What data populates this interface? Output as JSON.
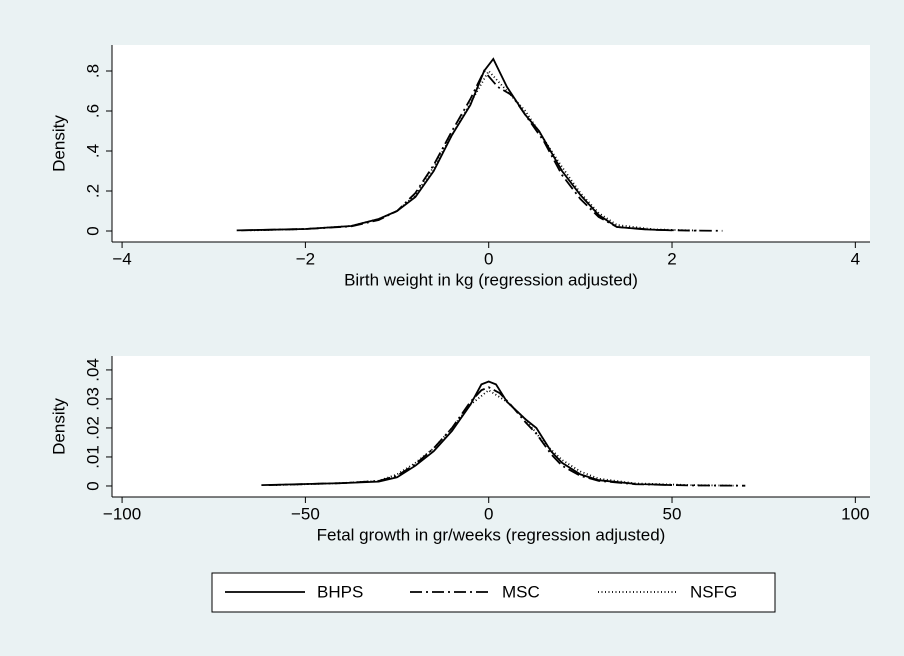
{
  "chart_data": [
    {
      "type": "line",
      "x_label": "Birth weight in kg (regression adjusted)",
      "y_label": "Density",
      "xlim": [
        -4.11,
        4.16
      ],
      "ylim": [
        -0.055,
        0.93
      ],
      "xticks": [
        {
          "value": -4,
          "label": "−4"
        },
        {
          "value": -2,
          "label": "−2"
        },
        0,
        2,
        4
      ],
      "yticks": [
        0,
        {
          "value": 0.2,
          "label": ".2"
        },
        {
          "value": 0.4,
          "label": ".4"
        },
        {
          "value": 0.6,
          "label": ".6"
        },
        {
          "value": 0.8,
          "label": ".8"
        }
      ],
      "series": [
        {
          "name": "BHPS",
          "color": "#000000",
          "style": "solid",
          "x": [
            -2.75,
            -2,
            -1.5,
            -1.2,
            -1,
            -0.8,
            -0.6,
            -0.4,
            -0.2,
            -0.05,
            0.05,
            0.2,
            0.4,
            0.55,
            0.8,
            1,
            1.2,
            1.4,
            1.7,
            2
          ],
          "values": [
            0.003,
            0.01,
            0.025,
            0.06,
            0.1,
            0.17,
            0.3,
            0.48,
            0.63,
            0.8,
            0.86,
            0.72,
            0.58,
            0.5,
            0.3,
            0.18,
            0.08,
            0.02,
            0.008,
            0.003
          ]
        },
        {
          "name": "MSC",
          "color": "#000000",
          "style": "dashdot",
          "x": [
            -2.7,
            -2,
            -1.5,
            -1.2,
            -1,
            -0.8,
            -0.6,
            -0.4,
            -0.2,
            -0.05,
            0.1,
            0.25,
            0.4,
            0.6,
            0.8,
            1,
            1.2,
            1.4,
            1.8,
            2.2,
            2.55
          ],
          "values": [
            0.003,
            0.01,
            0.023,
            0.055,
            0.1,
            0.19,
            0.33,
            0.5,
            0.66,
            0.8,
            0.72,
            0.68,
            0.58,
            0.45,
            0.28,
            0.16,
            0.07,
            0.02,
            0.006,
            0.002,
            0.001
          ]
        },
        {
          "name": "NSFG",
          "color": "#000000",
          "style": "dot",
          "x": [
            -2.6,
            -2,
            -1.5,
            -1.2,
            -1,
            -0.8,
            -0.6,
            -0.4,
            -0.2,
            0,
            0.2,
            0.4,
            0.6,
            0.8,
            1,
            1.2,
            1.4,
            1.8,
            2.3
          ],
          "values": [
            0.003,
            0.01,
            0.025,
            0.06,
            0.1,
            0.18,
            0.32,
            0.48,
            0.64,
            0.8,
            0.7,
            0.6,
            0.46,
            0.32,
            0.19,
            0.09,
            0.03,
            0.008,
            0.002
          ]
        }
      ]
    },
    {
      "type": "line",
      "x_label": "Fetal growth in gr/weeks (regression adjusted)",
      "y_label": "Density",
      "xlim": [
        -102.75,
        104
      ],
      "ylim": [
        -0.0038,
        0.0448
      ],
      "xticks": [
        {
          "value": -100,
          "label": "−100"
        },
        {
          "value": -50,
          "label": "−50"
        },
        0,
        50,
        100
      ],
      "yticks": [
        0,
        {
          "value": 0.01,
          "label": ".01"
        },
        {
          "value": 0.02,
          "label": ".02"
        },
        {
          "value": 0.03,
          "label": ".03"
        },
        {
          "value": 0.04,
          "label": ".04"
        }
      ],
      "series": [
        {
          "color": "#000000",
          "style": "solid",
          "x": [
            -62,
            -40,
            -30,
            -25,
            -20,
            -15,
            -10,
            -5,
            -2,
            0,
            2,
            5,
            10,
            13,
            17,
            20,
            25,
            30,
            40,
            50
          ],
          "values": [
            0.0003,
            0.001,
            0.0015,
            0.003,
            0.007,
            0.012,
            0.019,
            0.028,
            0.035,
            0.036,
            0.035,
            0.029,
            0.023,
            0.02,
            0.012,
            0.008,
            0.004,
            0.002,
            0.0007,
            0.0003
          ]
        },
        {
          "color": "#000000",
          "style": "dashdot",
          "x": [
            -60,
            -40,
            -30,
            -25,
            -20,
            -15,
            -10,
            -5,
            -2,
            0,
            3,
            6,
            10,
            13,
            17,
            20,
            25,
            30,
            40,
            55,
            70
          ],
          "values": [
            0.0003,
            0.001,
            0.0017,
            0.0035,
            0.0075,
            0.013,
            0.02,
            0.029,
            0.033,
            0.034,
            0.032,
            0.028,
            0.022,
            0.018,
            0.011,
            0.007,
            0.0035,
            0.0018,
            0.0006,
            0.0002,
            0.0001
          ]
        },
        {
          "color": "#000000",
          "style": "dot",
          "x": [
            -58,
            -40,
            -30,
            -25,
            -20,
            -15,
            -10,
            -5,
            0,
            5,
            10,
            15,
            20,
            25,
            30,
            40,
            55,
            68
          ],
          "values": [
            0.0003,
            0.001,
            0.0018,
            0.004,
            0.008,
            0.013,
            0.02,
            0.028,
            0.033,
            0.029,
            0.023,
            0.015,
            0.009,
            0.005,
            0.0025,
            0.0009,
            0.0003,
            0.0001
          ]
        }
      ]
    }
  ]
}
